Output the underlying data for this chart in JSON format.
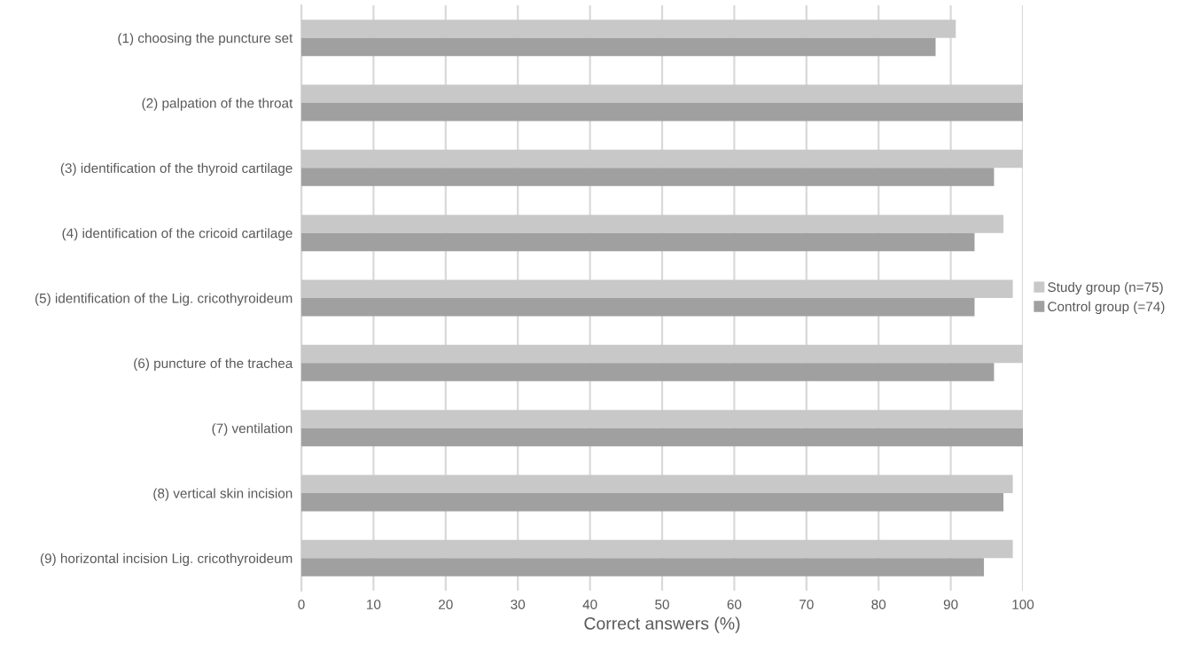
{
  "chart_data": {
    "type": "bar",
    "orientation": "horizontal",
    "xlabel": "Correct answers (%)",
    "categories": [
      "(1) choosing the puncture set",
      "(2) palpation of the throat",
      "(3) identification of the thyroid cartilage",
      "(4) identification of the cricoid cartilage",
      "(5) identification of the Lig. cricothyroideum",
      "(6) puncture of the trachea",
      "(7) ventilation",
      "(8) vertical skin incision",
      "(9) horizontal incision Lig. cricothyroideum"
    ],
    "series": [
      {
        "name": "Study group (n=75)",
        "color": "#c8c8c8",
        "values": [
          90.7,
          100,
          100,
          97.3,
          98.6,
          100,
          100,
          98.6,
          98.6
        ]
      },
      {
        "name": "Control group (=74)",
        "color": "#a0a0a0",
        "values": [
          87.9,
          100,
          96.0,
          93.3,
          93.3,
          96.0,
          100,
          97.3,
          94.6
        ]
      }
    ],
    "xlim": [
      0,
      100
    ],
    "xticks": [
      0,
      10,
      20,
      30,
      40,
      50,
      60,
      70,
      80,
      90,
      100
    ],
    "grid": "x",
    "legend": "right"
  }
}
